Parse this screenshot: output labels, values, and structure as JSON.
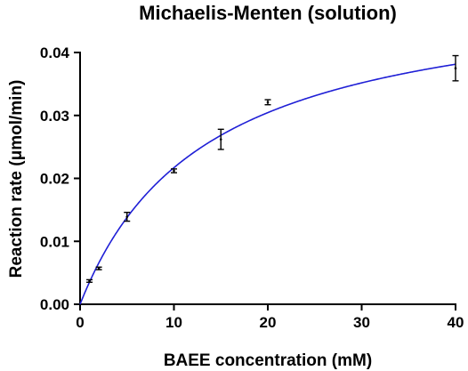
{
  "chart_data": {
    "type": "scatter",
    "title": "Michaelis-Menten (solution)",
    "xlabel": "BAEE concentration (mM)",
    "ylabel": "Reaction rate (μmol/min)",
    "xlim": [
      0,
      40
    ],
    "ylim": [
      0,
      0.04
    ],
    "x_ticks": [
      "0",
      "10",
      "20",
      "30",
      "40"
    ],
    "y_ticks": [
      "0.00",
      "0.01",
      "0.02",
      "0.03",
      "0.04"
    ],
    "grid": false,
    "legend": "none",
    "points": [
      {
        "x": 1,
        "y": 0.0037,
        "err": 0.0002
      },
      {
        "x": 2,
        "y": 0.0057,
        "err": 0.0002
      },
      {
        "x": 5,
        "y": 0.0139,
        "err": 0.0007
      },
      {
        "x": 10,
        "y": 0.0212,
        "err": 0.0003
      },
      {
        "x": 15,
        "y": 0.0262,
        "err": 0.0016
      },
      {
        "x": 20,
        "y": 0.0321,
        "err": 0.0004
      },
      {
        "x": 40,
        "y": 0.0375,
        "err": 0.002
      }
    ],
    "fit": {
      "model": "michaelis-menten",
      "vmax": 0.051,
      "km": 13.5,
      "color": "#1f1fd6"
    },
    "point_color": "#000000"
  }
}
